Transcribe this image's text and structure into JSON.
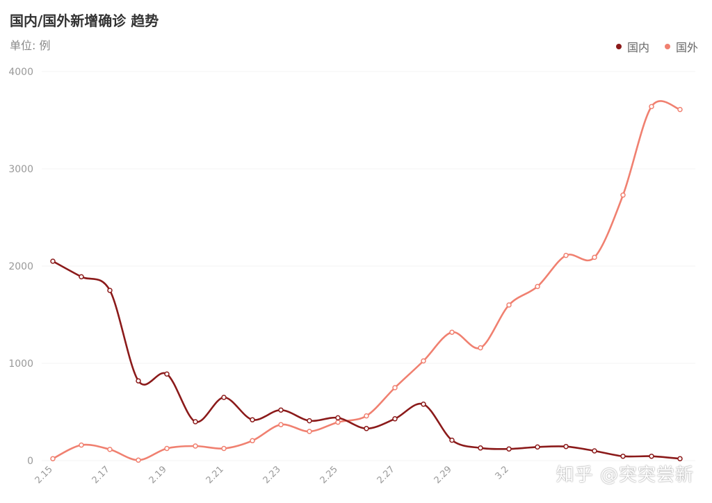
{
  "chart_data": {
    "type": "line",
    "title": "国内/国外新增确诊 趋势",
    "subtitle": "单位: 例",
    "x": [
      "2.15",
      "2.16",
      "2.17",
      "2.18",
      "2.19",
      "2.20",
      "2.21",
      "2.22",
      "2.23",
      "2.24",
      "2.25",
      "2.26",
      "2.27",
      "2.28",
      "2.29",
      "3.1",
      "3.2",
      "3.3",
      "3.4",
      "3.5",
      "3.6",
      "3.7",
      "3.8"
    ],
    "x_tick_labels": [
      "2.15",
      "2.17",
      "2.19",
      "2.21",
      "2.23",
      "2.25",
      "2.27",
      "2.29",
      "3.2"
    ],
    "series": [
      {
        "name": "国内",
        "color": "#8b1a1a",
        "values": [
          2050,
          1890,
          1750,
          820,
          890,
          400,
          650,
          420,
          520,
          410,
          440,
          330,
          430,
          580,
          210,
          130,
          120,
          140,
          145,
          100,
          45,
          45,
          20
        ]
      },
      {
        "name": "国外",
        "color": "#f08070",
        "values": [
          20,
          160,
          115,
          5,
          125,
          150,
          125,
          205,
          370,
          300,
          395,
          460,
          750,
          1025,
          1320,
          1160,
          1600,
          1790,
          2110,
          2090,
          2730,
          3640,
          3610
        ]
      }
    ],
    "ylim": [
      0,
      4000
    ],
    "yticks": [
      0,
      1000,
      2000,
      3000,
      4000
    ],
    "grid": true,
    "legend_position": "top-right"
  },
  "watermark": "知乎 @突突尝新"
}
